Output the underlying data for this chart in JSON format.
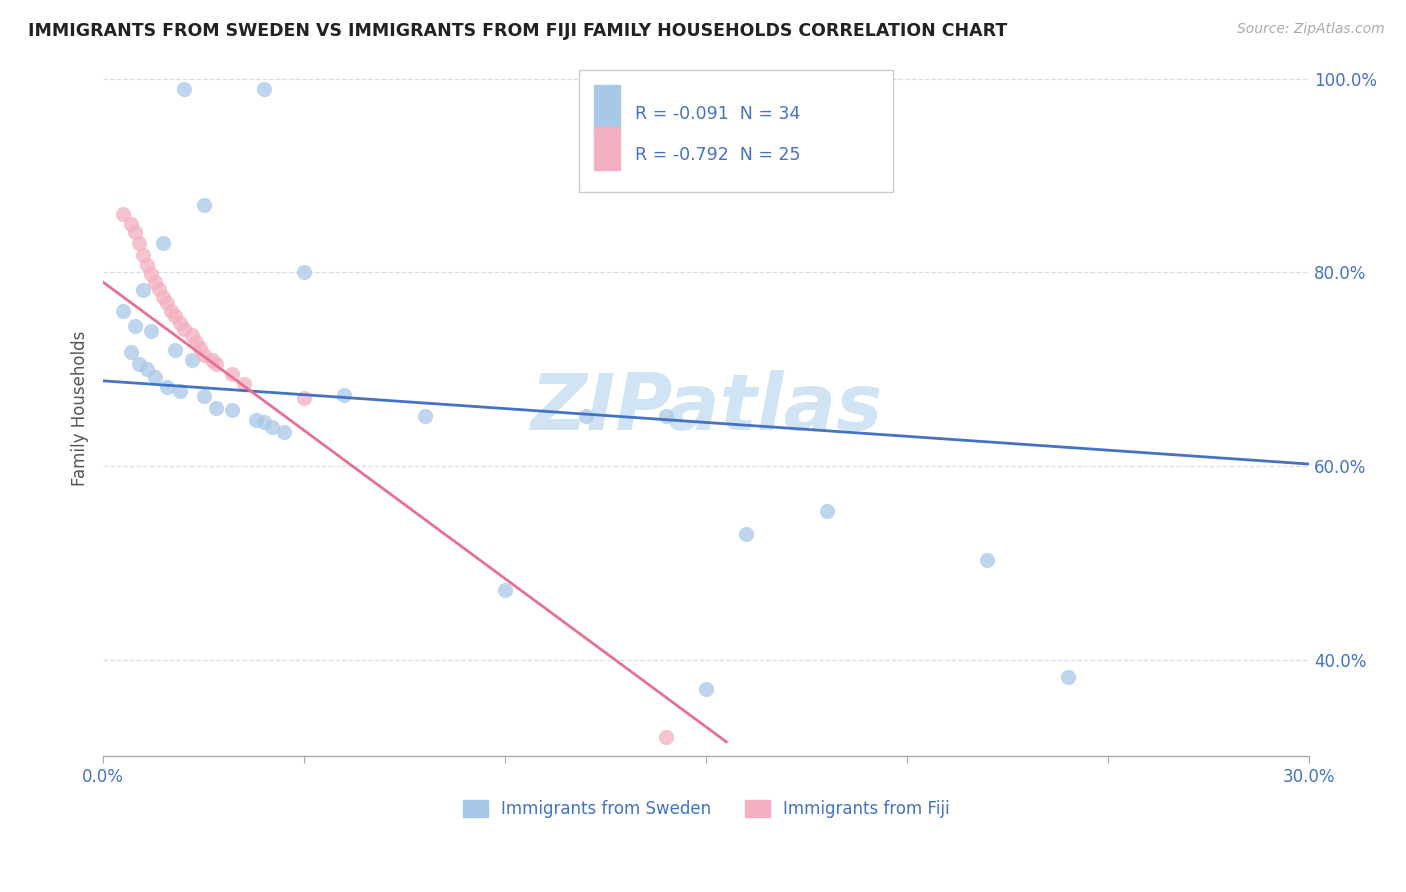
{
  "title": "IMMIGRANTS FROM SWEDEN VS IMMIGRANTS FROM FIJI FAMILY HOUSEHOLDS CORRELATION CHART",
  "source": "Source: ZipAtlas.com",
  "ylabel_label": "Family Households",
  "legend_sweden": "Immigrants from Sweden",
  "legend_fiji": "Immigrants from Fiji",
  "r_sweden": "R = -0.091",
  "n_sweden": "N = 34",
  "r_fiji": "R = -0.792",
  "n_fiji": "N = 25",
  "color_sweden": "#a8c8e8",
  "color_fiji": "#f4b0c0",
  "color_sweden_line": "#4472c4",
  "color_fiji_line": "#e87090",
  "color_text_blue": "#4472c4",
  "color_title": "#222222",
  "color_source": "#aaaaaa",
  "background": "#ffffff",
  "watermark": "ZIPatlas",
  "watermark_color": "#d0e4f4",
  "xlim": [
    0.0,
    0.3
  ],
  "ylim": [
    0.3,
    1.02
  ],
  "sweden_x": [
    0.02,
    0.04,
    0.025,
    0.005,
    0.008,
    0.012,
    0.007,
    0.009,
    0.011,
    0.013,
    0.016,
    0.019,
    0.025,
    0.028,
    0.032,
    0.038,
    0.04,
    0.022,
    0.015,
    0.01,
    0.042,
    0.05,
    0.06,
    0.08,
    0.14,
    0.15,
    0.16,
    0.18,
    0.22,
    0.24,
    0.12,
    0.1,
    0.045,
    0.018
  ],
  "sweden_y": [
    0.99,
    0.99,
    0.87,
    0.76,
    0.745,
    0.74,
    0.718,
    0.705,
    0.7,
    0.692,
    0.682,
    0.678,
    0.672,
    0.66,
    0.658,
    0.648,
    0.645,
    0.71,
    0.83,
    0.782,
    0.64,
    0.8,
    0.673,
    0.652,
    0.652,
    0.37,
    0.53,
    0.553,
    0.503,
    0.382,
    0.652,
    0.472,
    0.635,
    0.72
  ],
  "fiji_x": [
    0.005,
    0.007,
    0.008,
    0.009,
    0.01,
    0.011,
    0.012,
    0.013,
    0.014,
    0.015,
    0.016,
    0.017,
    0.018,
    0.019,
    0.02,
    0.022,
    0.023,
    0.024,
    0.025,
    0.027,
    0.028,
    0.032,
    0.035,
    0.05,
    0.14
  ],
  "fiji_y": [
    0.86,
    0.85,
    0.842,
    0.83,
    0.818,
    0.808,
    0.798,
    0.79,
    0.783,
    0.775,
    0.768,
    0.76,
    0.755,
    0.748,
    0.742,
    0.735,
    0.728,
    0.722,
    0.715,
    0.71,
    0.705,
    0.695,
    0.685,
    0.67,
    0.32
  ],
  "sweden_trend_x": [
    0.0,
    0.3
  ],
  "sweden_trend_y": [
    0.688,
    0.602
  ],
  "fiji_trend_x": [
    0.0,
    0.155
  ],
  "fiji_trend_y": [
    0.79,
    0.315
  ],
  "x_ticks": [
    0.0,
    0.05,
    0.1,
    0.15,
    0.2,
    0.25,
    0.3
  ],
  "y_ticks": [
    0.4,
    0.6,
    0.8,
    1.0
  ],
  "x_tick_show": [
    true,
    false,
    false,
    false,
    false,
    false,
    true
  ],
  "grid_color": "#dddddd",
  "spine_color": "#aaaaaa"
}
